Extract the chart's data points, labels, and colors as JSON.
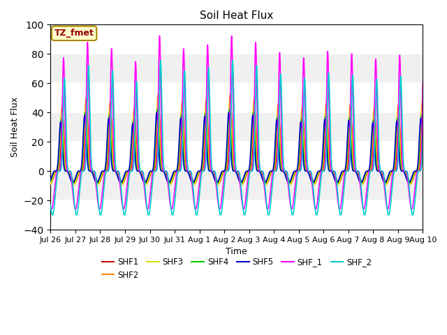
{
  "title": "Soil Heat Flux",
  "xlabel": "Time",
  "ylabel": "Soil Heat Flux",
  "ylim": [
    -40,
    100
  ],
  "yticks": [
    -40,
    -20,
    0,
    20,
    40,
    60,
    80,
    100
  ],
  "n_days": 15.5,
  "series": [
    {
      "name": "SHF1",
      "color": "#cc0000",
      "lw": 1.2,
      "amp": 42,
      "night_amp": -8,
      "phase": 0.0,
      "sharpness": 6
    },
    {
      "name": "SHF2",
      "color": "#ff8800",
      "lw": 1.2,
      "amp": 50,
      "night_amp": -9,
      "phase": 0.02,
      "sharpness": 6
    },
    {
      "name": "SHF3",
      "color": "#dddd00",
      "lw": 1.2,
      "amp": 45,
      "night_amp": -9,
      "phase": 0.04,
      "sharpness": 6
    },
    {
      "name": "SHF4",
      "color": "#00cc00",
      "lw": 1.2,
      "amp": 40,
      "night_amp": -8,
      "phase": 0.06,
      "sharpness": 6
    },
    {
      "name": "SHF5",
      "color": "#0000cc",
      "lw": 1.2,
      "amp": 38,
      "night_amp": -8,
      "phase": 0.08,
      "sharpness": 6
    },
    {
      "name": "SHF_1",
      "color": "#ff00ff",
      "lw": 1.2,
      "amp": 88,
      "night_amp": -26,
      "phase": -0.04,
      "sharpness": 10
    },
    {
      "name": "SHF_2",
      "color": "#00cccc",
      "lw": 1.2,
      "amp": 72,
      "night_amp": -30,
      "phase": -0.08,
      "sharpness": 8
    }
  ],
  "day_var_factors": [
    0.88,
    1.0,
    0.95,
    0.85,
    1.05,
    0.95,
    0.98,
    1.05,
    1.0,
    0.92,
    0.88,
    0.93,
    0.91,
    0.87,
    0.9,
    0.95
  ],
  "xtick_labels": [
    "Jul 26",
    "Jul 27",
    "Jul 28",
    "Jul 29",
    "Jul 30",
    "Jul 31",
    "Aug 1",
    "Aug 2",
    "Aug 3",
    "Aug 4",
    "Aug 5",
    "Aug 6",
    "Aug 7",
    "Aug 8",
    "Aug 9",
    "Aug 10"
  ],
  "annotation_text": "TZ_fmet",
  "figsize": [
    6.4,
    4.8
  ],
  "dpi": 100
}
